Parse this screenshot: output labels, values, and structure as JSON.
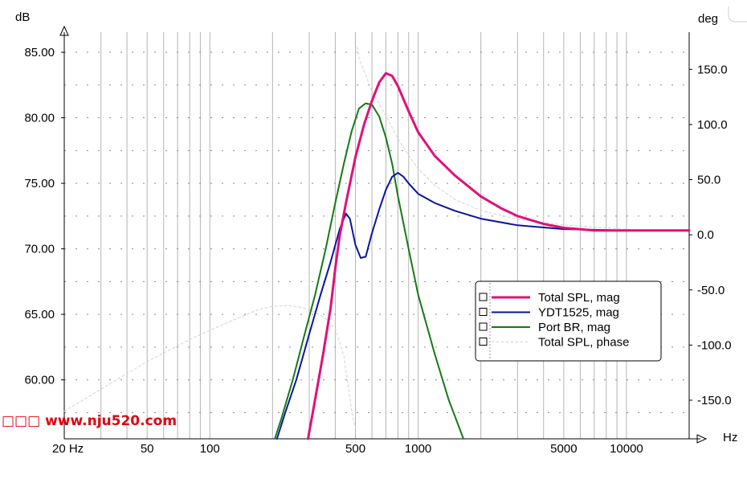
{
  "chart_data": {
    "type": "line",
    "title": "",
    "xlabel": "Hz",
    "ylabel": "dB",
    "y2label": "deg",
    "x_scale": "log",
    "xlim": [
      20,
      20000
    ],
    "ylim": [
      55.5,
      85.8
    ],
    "y2lim": [
      -185,
      175
    ],
    "x_ticks": [
      {
        "v": 20,
        "label": "20 Hz"
      },
      {
        "v": 50,
        "label": "50"
      },
      {
        "v": 100,
        "label": "100"
      },
      {
        "v": 500,
        "label": "500"
      },
      {
        "v": 1000,
        "label": "1000"
      },
      {
        "v": 5000,
        "label": "5000"
      },
      {
        "v": 10000,
        "label": "10000"
      }
    ],
    "y_ticks": [
      {
        "v": 85,
        "label": "85.00"
      },
      {
        "v": 80,
        "label": "80.00"
      },
      {
        "v": 75,
        "label": "75.00"
      },
      {
        "v": 70,
        "label": "70.00"
      },
      {
        "v": 65,
        "label": "65.00"
      },
      {
        "v": 60,
        "label": "60.00"
      }
    ],
    "y2_ticks": [
      {
        "v": 150,
        "label": "150.0"
      },
      {
        "v": 100,
        "label": "100.0"
      },
      {
        "v": 50,
        "label": "50.0"
      },
      {
        "v": 0,
        "label": "0.0"
      },
      {
        "v": -50,
        "label": "-50.0"
      },
      {
        "v": -100,
        "label": "-100.0"
      },
      {
        "v": -150,
        "label": "-150.0"
      }
    ],
    "grid": true,
    "legend_position": "right",
    "series": [
      {
        "name": "Total SPL, mag",
        "axis": "left",
        "color": "#e0107a",
        "style": "solid",
        "points": [
          [
            296,
            55.5
          ],
          [
            320,
            58.5
          ],
          [
            350,
            62.0
          ],
          [
            380,
            65.5
          ],
          [
            400,
            68.5
          ],
          [
            420,
            71.0
          ],
          [
            450,
            73.5
          ],
          [
            500,
            77.0
          ],
          [
            550,
            79.5
          ],
          [
            600,
            81.3
          ],
          [
            650,
            82.7
          ],
          [
            700,
            83.4
          ],
          [
            750,
            83.2
          ],
          [
            800,
            82.4
          ],
          [
            900,
            80.5
          ],
          [
            1000,
            78.9
          ],
          [
            1200,
            77.1
          ],
          [
            1500,
            75.6
          ],
          [
            2000,
            74.0
          ],
          [
            2500,
            73.1
          ],
          [
            3000,
            72.5
          ],
          [
            4000,
            71.9
          ],
          [
            5000,
            71.6
          ],
          [
            7000,
            71.4
          ],
          [
            10000,
            71.4
          ],
          [
            20000,
            71.4
          ]
        ]
      },
      {
        "name": "YDT1525, mag",
        "axis": "left",
        "color": "#0a14a0",
        "style": "solid",
        "points": [
          [
            210,
            55.5
          ],
          [
            230,
            57.5
          ],
          [
            260,
            60.0
          ],
          [
            300,
            63.5
          ],
          [
            340,
            66.5
          ],
          [
            380,
            69.0
          ],
          [
            420,
            71.5
          ],
          [
            450,
            72.7
          ],
          [
            470,
            72.3
          ],
          [
            500,
            70.3
          ],
          [
            530,
            69.3
          ],
          [
            560,
            69.4
          ],
          [
            600,
            71.2
          ],
          [
            650,
            73.0
          ],
          [
            700,
            74.5
          ],
          [
            750,
            75.5
          ],
          [
            800,
            75.8
          ],
          [
            850,
            75.5
          ],
          [
            900,
            75.0
          ],
          [
            1000,
            74.2
          ],
          [
            1200,
            73.5
          ],
          [
            1500,
            72.9
          ],
          [
            2000,
            72.3
          ],
          [
            3000,
            71.8
          ],
          [
            5000,
            71.5
          ],
          [
            10000,
            71.4
          ],
          [
            20000,
            71.4
          ]
        ]
      },
      {
        "name": "Port BR, mag",
        "axis": "left",
        "color": "#157a15",
        "style": "solid",
        "points": [
          [
            205,
            55.5
          ],
          [
            220,
            57.0
          ],
          [
            250,
            60.0
          ],
          [
            280,
            63.0
          ],
          [
            320,
            66.5
          ],
          [
            360,
            70.0
          ],
          [
            400,
            73.5
          ],
          [
            440,
            76.5
          ],
          [
            480,
            79.0
          ],
          [
            520,
            80.7
          ],
          [
            560,
            81.1
          ],
          [
            600,
            81.0
          ],
          [
            650,
            80.1
          ],
          [
            700,
            78.5
          ],
          [
            750,
            76.5
          ],
          [
            800,
            74.0
          ],
          [
            900,
            70.0
          ],
          [
            1000,
            66.5
          ],
          [
            1200,
            62.0
          ],
          [
            1400,
            58.5
          ],
          [
            1650,
            55.5
          ]
        ]
      },
      {
        "name": "Total SPL, phase",
        "axis": "right",
        "color": "#d3d3d3",
        "style": "dashed",
        "points": [
          [
            20,
            -160
          ],
          [
            30,
            -140
          ],
          [
            50,
            -115
          ],
          [
            80,
            -95
          ],
          [
            120,
            -80
          ],
          [
            170,
            -68
          ],
          [
            200,
            -65
          ],
          [
            240,
            -64
          ],
          [
            280,
            -66
          ],
          [
            320,
            -70
          ],
          [
            360,
            -76
          ],
          [
            400,
            -85
          ],
          [
            440,
            -110
          ],
          [
            480,
            -160
          ],
          [
            500,
            -175
          ],
          [
            510,
            170
          ],
          [
            520,
            160
          ],
          [
            560,
            145
          ],
          [
            600,
            130
          ],
          [
            700,
            108
          ],
          [
            800,
            87
          ],
          [
            900,
            72
          ],
          [
            1000,
            60
          ],
          [
            1200,
            45
          ],
          [
            1500,
            32
          ],
          [
            2000,
            22
          ],
          [
            3000,
            14
          ],
          [
            5000,
            9
          ],
          [
            10000,
            5
          ],
          [
            20000,
            3
          ]
        ]
      }
    ]
  }
}
